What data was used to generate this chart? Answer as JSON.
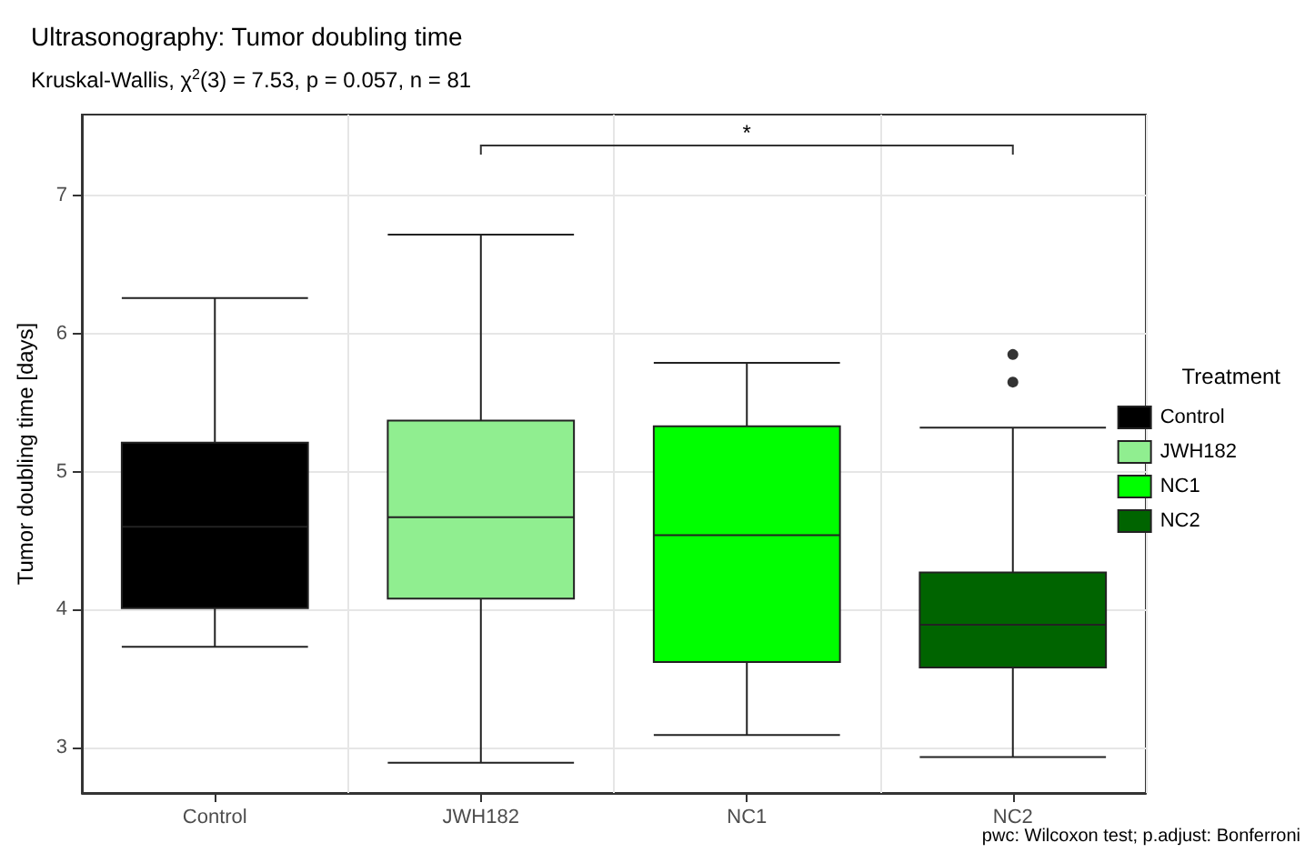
{
  "chart_data": {
    "type": "box",
    "title": "Ultrasonography: Tumor doubling time",
    "subtitle": "Kruskal-Wallis, χ$^{2}$(3) = 7.53, p = 0.057, n = 81",
    "ylabel": "Tumor doubling time [days]",
    "legend_title": "Treatment",
    "categories": [
      "Control",
      "JWH182",
      "NC1",
      "NC2"
    ],
    "series": [
      {
        "name": "Control",
        "color": "#000000",
        "boxes": [
          {
            "low": 3.73,
            "q1": 4.01,
            "median": 4.6,
            "q3": 5.21,
            "high": 6.26
          },
          null,
          null,
          null
        ]
      },
      {
        "name": "JWH182",
        "color": "#90ee90",
        "boxes": [
          null,
          {
            "low": 2.89,
            "q1": 4.08,
            "median": 4.67,
            "q3": 5.37,
            "high": 6.72
          },
          null,
          null
        ]
      },
      {
        "name": "NC1",
        "color": "#00ff00",
        "boxes": [
          null,
          null,
          {
            "low": 3.09,
            "q1": 3.62,
            "median": 4.54,
            "q3": 5.33,
            "high": 5.79
          },
          null
        ]
      },
      {
        "name": "NC2",
        "color": "#006400",
        "boxes": [
          null,
          null,
          null,
          {
            "low": 2.93,
            "q1": 3.58,
            "median": 3.89,
            "q3": 4.27,
            "high": 5.32,
            "outliers": [
              5.85,
              5.65
            ]
          }
        ]
      }
    ],
    "ylim": [
      2.67,
      7.59
    ],
    "yticks": [
      3,
      4,
      5,
      6,
      7
    ],
    "grid": true,
    "legend": "right",
    "annotations": [
      "*",
      "pwc: Wilcoxon test; p.adjust: Bonferroni"
    ]
  }
}
